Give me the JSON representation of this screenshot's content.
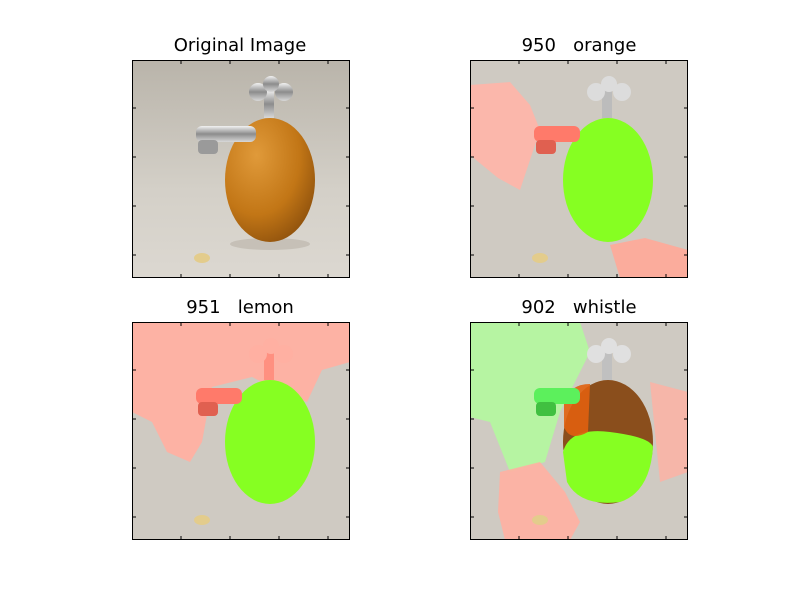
{
  "figure": {
    "panels": [
      {
        "title": "Original Image",
        "overlay": "none"
      },
      {
        "title": "950   orange",
        "overlay": "orange"
      },
      {
        "title": "951   lemon",
        "overlay": "lemon"
      },
      {
        "title": "902   whistle",
        "overlay": "whistle"
      }
    ]
  },
  "colors": {
    "background": "#cfcac2",
    "orange_fruit": "#c8801e",
    "highlight_green": "#7cff1a",
    "highlight_red": "#ff9a8a",
    "highlight_pale_green": "#b4f5a0",
    "frame": "#000000"
  }
}
